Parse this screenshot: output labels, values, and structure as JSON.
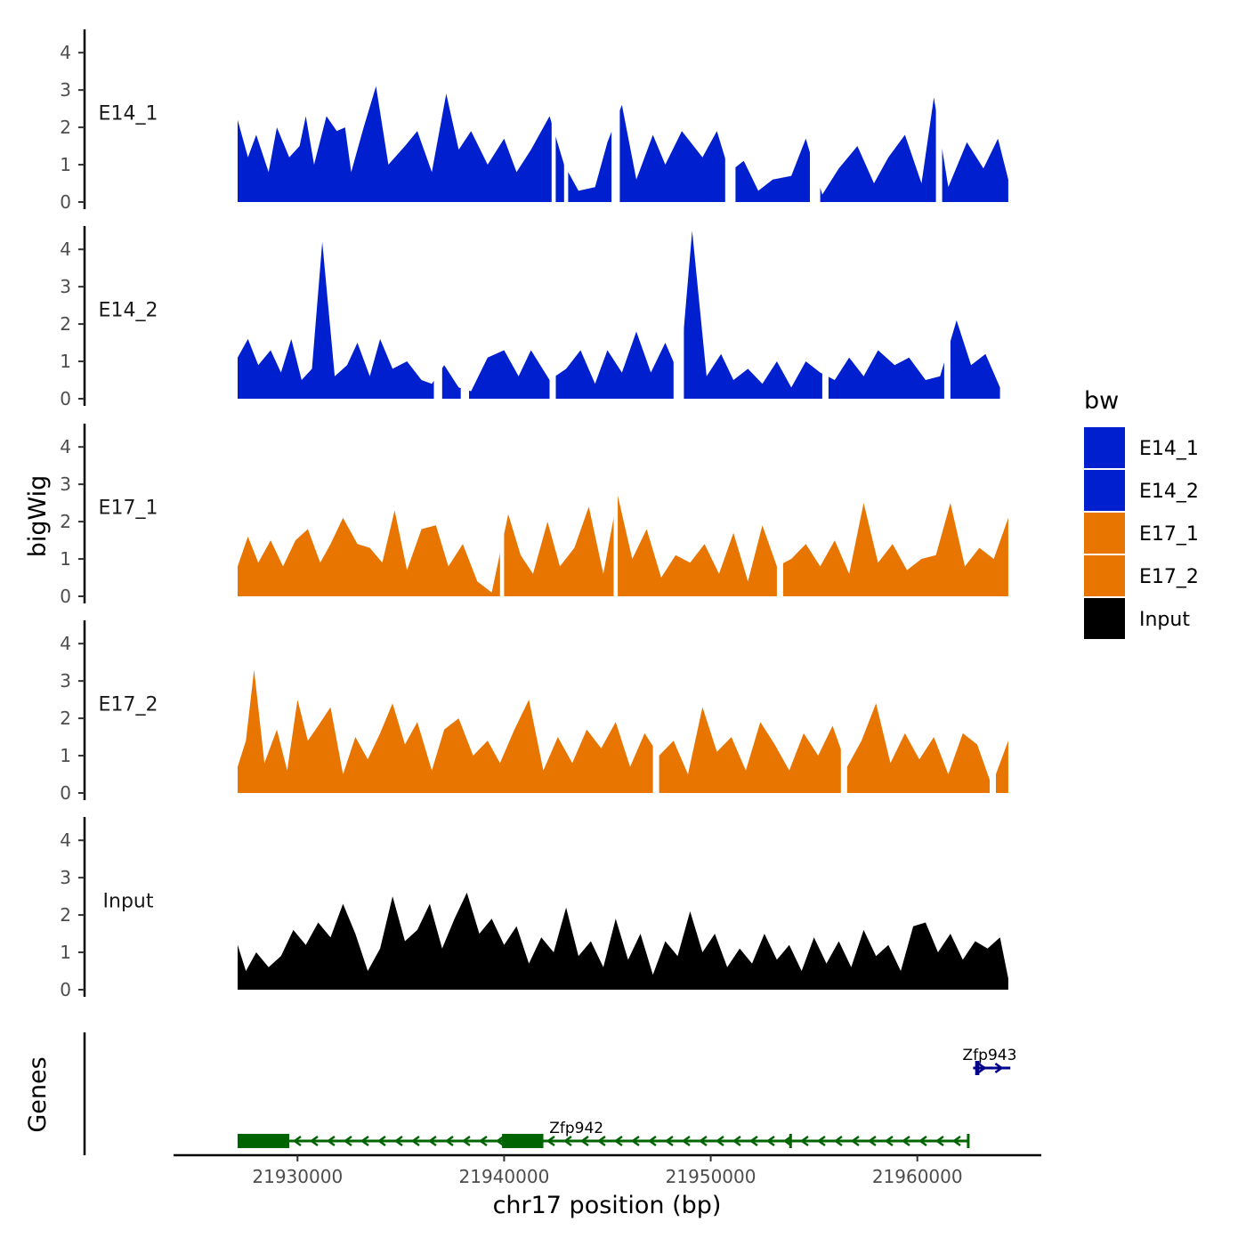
{
  "chart_data": {
    "type": "area",
    "title": "",
    "xlabel": "chr17 position (bp)",
    "ylabel": "bigWig",
    "genes_label": "Genes",
    "xlim": [
      21924000,
      21966000
    ],
    "ylim": [
      0,
      4.6
    ],
    "x_ticks": [
      {
        "value": 21930000,
        "label": "21930000"
      },
      {
        "value": 21940000,
        "label": "21940000"
      },
      {
        "value": 21950000,
        "label": "21950000"
      },
      {
        "value": 21960000,
        "label": "21960000"
      }
    ],
    "y_ticks": [
      {
        "value": 0,
        "label": "0"
      },
      {
        "value": 1,
        "label": "1"
      },
      {
        "value": 2,
        "label": "2"
      },
      {
        "value": 3,
        "label": "3"
      },
      {
        "value": 4,
        "label": "4"
      }
    ],
    "legend": {
      "title": "bw",
      "position": "right",
      "entries": [
        {
          "label": "E14_1",
          "color": "#0020D0"
        },
        {
          "label": "E14_2",
          "color": "#0020D0"
        },
        {
          "label": "E17_1",
          "color": "#E87500"
        },
        {
          "label": "E17_2",
          "color": "#E87500"
        },
        {
          "label": "Input",
          "color": "#000000"
        }
      ]
    },
    "series": [
      {
        "name": "E14_1",
        "color": "#0020D0",
        "x": [
          21927100,
          21927600,
          21928000,
          21928600,
          21929000,
          21929600,
          21930100,
          21930400,
          21930800,
          21931400,
          21931900,
          21932300,
          21932600,
          21933200,
          21933800,
          21934400,
          21935200,
          21935800,
          21936500,
          21937200,
          21937800,
          21938400,
          21939200,
          21940000,
          21940600,
          21941300,
          21942200,
          21942900,
          21943600,
          21944400,
          21945000,
          21945700,
          21946400,
          21947200,
          21947800,
          21948600,
          21949600,
          21950300,
          21950900,
          21951600,
          21952300,
          21953000,
          21953900,
          21954600,
          21955400,
          21956200,
          21957100,
          21957900,
          21958600,
          21959400,
          21960200,
          21960800,
          21961500,
          21962400,
          21963200,
          21963900,
          21964400
        ],
        "y": [
          2.2,
          1.2,
          1.8,
          0.8,
          2.0,
          1.2,
          1.5,
          2.3,
          1.0,
          2.3,
          1.9,
          2.0,
          0.8,
          2.0,
          3.1,
          1.0,
          1.5,
          1.9,
          0.8,
          2.9,
          1.4,
          1.9,
          1.0,
          1.7,
          0.8,
          1.4,
          2.3,
          1.0,
          0.3,
          0.4,
          1.6,
          2.6,
          0.6,
          1.8,
          1.0,
          1.9,
          1.2,
          1.9,
          0.8,
          1.1,
          0.3,
          0.6,
          0.7,
          1.7,
          0.2,
          0.9,
          1.5,
          0.5,
          1.2,
          1.8,
          0.5,
          2.8,
          0.4,
          1.6,
          0.9,
          1.7,
          0.6
        ],
        "gaps": [
          [
            21942300,
            21942500
          ],
          [
            21942900,
            21943100
          ],
          [
            21945200,
            21945600
          ],
          [
            21950700,
            21951200
          ],
          [
            21954800,
            21955300
          ],
          [
            21960900,
            21961200
          ]
        ]
      },
      {
        "name": "E14_2",
        "color": "#0020D0",
        "x": [
          21927100,
          21927600,
          21928100,
          21928700,
          21929200,
          21929700,
          21930200,
          21930700,
          21931200,
          21931800,
          21932400,
          21932900,
          21933500,
          21934000,
          21934600,
          21935300,
          21936000,
          21936500,
          21937100,
          21937800,
          21938400,
          21939200,
          21940000,
          21940700,
          21941300,
          21942200,
          21943000,
          21943700,
          21944400,
          21945000,
          21945700,
          21946400,
          21947100,
          21947800,
          21948500,
          21949100,
          21949800,
          21950500,
          21951100,
          21951800,
          21952500,
          21953200,
          21953900,
          21954600,
          21955300,
          21956000,
          21956700,
          21957400,
          21958100,
          21958900,
          21959600,
          21960400,
          21961100,
          21961900,
          21962600,
          21963300,
          21964000
        ],
        "y": [
          1.1,
          1.6,
          0.9,
          1.3,
          0.7,
          1.6,
          0.5,
          0.8,
          4.2,
          0.6,
          0.9,
          1.5,
          0.6,
          1.6,
          0.8,
          1.0,
          0.5,
          0.4,
          0.9,
          0.3,
          0.2,
          1.1,
          1.3,
          0.6,
          1.3,
          0.5,
          0.8,
          1.3,
          0.4,
          1.3,
          0.7,
          1.8,
          0.7,
          1.5,
          0.6,
          4.5,
          0.6,
          1.2,
          0.5,
          0.8,
          0.4,
          1.0,
          0.3,
          1.0,
          0.7,
          0.5,
          1.1,
          0.6,
          1.3,
          0.9,
          1.1,
          0.5,
          0.6,
          2.1,
          0.9,
          1.2,
          0.3
        ],
        "gaps": [
          [
            21936600,
            21937000
          ],
          [
            21937900,
            21938300
          ],
          [
            21942200,
            21942500
          ],
          [
            21948200,
            21948700
          ],
          [
            21955400,
            21955700
          ],
          [
            21961300,
            21961600
          ]
        ]
      },
      {
        "name": "E17_1",
        "color": "#E87500",
        "x": [
          21927100,
          21927600,
          21928100,
          21928700,
          21929300,
          21929900,
          21930500,
          21931100,
          21931600,
          21932200,
          21932900,
          21933500,
          21934100,
          21934700,
          21935300,
          21936000,
          21936700,
          21937300,
          21938000,
          21938700,
          21939400,
          21940200,
          21940800,
          21941400,
          21942100,
          21942700,
          21943400,
          21944100,
          21944800,
          21945500,
          21946200,
          21946900,
          21947600,
          21948300,
          21949000,
          21949700,
          21950400,
          21951100,
          21951800,
          21952500,
          21953200,
          21953900,
          21954600,
          21955300,
          21956000,
          21956700,
          21957400,
          21958100,
          21958800,
          21959500,
          21960200,
          21960900,
          21961600,
          21962300,
          21963000,
          21963700,
          21964400
        ],
        "y": [
          0.8,
          1.6,
          0.9,
          1.5,
          0.8,
          1.5,
          1.8,
          0.9,
          1.4,
          2.1,
          1.4,
          1.3,
          0.9,
          2.3,
          0.7,
          1.8,
          1.9,
          0.8,
          1.4,
          0.4,
          0.1,
          2.2,
          1.1,
          0.6,
          2.0,
          0.8,
          1.3,
          2.4,
          0.6,
          2.7,
          1.0,
          1.8,
          0.5,
          1.1,
          0.9,
          1.4,
          0.6,
          1.7,
          0.4,
          1.9,
          0.8,
          1.0,
          1.4,
          0.8,
          1.5,
          0.6,
          2.5,
          0.9,
          1.4,
          0.7,
          1.0,
          1.1,
          2.5,
          0.8,
          1.3,
          1.0,
          2.1
        ],
        "gaps": [
          [
            21939800,
            21940000
          ],
          [
            21945300,
            21945500
          ],
          [
            21953200,
            21953500
          ]
        ]
      },
      {
        "name": "E17_2",
        "color": "#E87500",
        "x": [
          21927100,
          21927500,
          21927900,
          21928400,
          21929000,
          21929500,
          21930000,
          21930500,
          21931000,
          21931600,
          21932200,
          21932800,
          21933400,
          21934000,
          21934600,
          21935200,
          21935800,
          21936500,
          21937100,
          21937800,
          21938500,
          21939200,
          21939800,
          21940500,
          21941200,
          21941900,
          21942600,
          21943300,
          21944000,
          21944700,
          21945400,
          21946100,
          21946800,
          21947500,
          21948200,
          21948900,
          21949600,
          21950300,
          21951000,
          21951700,
          21952400,
          21953100,
          21953800,
          21954500,
          21955200,
          21955900,
          21956600,
          21957300,
          21958000,
          21958700,
          21959400,
          21960100,
          21960800,
          21961500,
          21962200,
          21962900,
          21963600,
          21964400
        ],
        "y": [
          0.7,
          1.4,
          3.3,
          0.8,
          1.7,
          0.6,
          2.5,
          1.4,
          1.8,
          2.3,
          0.5,
          1.5,
          0.9,
          1.6,
          2.4,
          1.3,
          1.9,
          0.6,
          1.7,
          2.0,
          1.0,
          1.4,
          0.8,
          1.7,
          2.5,
          0.6,
          1.5,
          0.8,
          1.7,
          1.2,
          1.9,
          0.7,
          1.6,
          1.0,
          1.4,
          0.5,
          2.3,
          1.1,
          1.5,
          0.6,
          1.9,
          1.3,
          0.6,
          1.6,
          1.0,
          1.8,
          0.7,
          1.4,
          2.4,
          0.8,
          1.6,
          0.9,
          1.5,
          0.5,
          1.6,
          1.3,
          0.2,
          1.4
        ],
        "gaps": [
          [
            21947200,
            21947500
          ],
          [
            21956300,
            21956600
          ],
          [
            21963500,
            21963800
          ]
        ]
      },
      {
        "name": "Input",
        "color": "#000000",
        "x": [
          21927100,
          21927500,
          21928000,
          21928600,
          21929200,
          21929800,
          21930400,
          21931000,
          21931600,
          21932200,
          21932800,
          21933400,
          21934000,
          21934600,
          21935200,
          21935800,
          21936400,
          21937000,
          21937600,
          21938200,
          21938800,
          21939400,
          21940000,
          21940600,
          21941200,
          21941800,
          21942400,
          21943000,
          21943600,
          21944200,
          21944800,
          21945400,
          21946000,
          21946600,
          21947200,
          21947800,
          21948400,
          21949000,
          21949600,
          21950200,
          21950800,
          21951400,
          21952000,
          21952600,
          21953200,
          21953800,
          21954400,
          21955000,
          21955600,
          21956200,
          21956800,
          21957400,
          21958000,
          21958600,
          21959200,
          21959800,
          21960400,
          21961000,
          21961600,
          21962200,
          21962800,
          21963400,
          21964000,
          21964400
        ],
        "y": [
          1.2,
          0.5,
          1.0,
          0.6,
          0.9,
          1.6,
          1.2,
          1.8,
          1.4,
          2.3,
          1.5,
          0.5,
          1.1,
          2.5,
          1.3,
          1.6,
          2.3,
          1.1,
          1.9,
          2.6,
          1.5,
          1.9,
          1.2,
          1.7,
          0.7,
          1.4,
          1.0,
          2.2,
          0.9,
          1.3,
          0.6,
          1.9,
          0.8,
          1.5,
          0.4,
          1.3,
          0.9,
          2.1,
          1.0,
          1.5,
          0.6,
          1.1,
          0.7,
          1.5,
          0.8,
          1.2,
          0.5,
          1.4,
          0.7,
          1.3,
          0.6,
          1.6,
          0.9,
          1.2,
          0.5,
          1.7,
          1.8,
          1.0,
          1.5,
          0.8,
          1.3,
          1.1,
          1.4,
          0.3
        ]
      }
    ],
    "genes": [
      {
        "name": "Zfp942",
        "strand": "-",
        "color": "#006400",
        "row": 2,
        "start": 21927100,
        "end": 21962500,
        "exons": [
          [
            21927100,
            21929600
          ],
          [
            21939900,
            21941900
          ],
          [
            21953800,
            21953900
          ],
          [
            21962400,
            21962500
          ]
        ],
        "label_x": 21943500
      },
      {
        "name": "Zfp943",
        "strand": "+",
        "color": "#00008B",
        "row": 1,
        "start": 21962700,
        "end": 21964500,
        "exons": [
          [
            21962800,
            21963000
          ]
        ],
        "label_x": 21963500
      }
    ]
  }
}
